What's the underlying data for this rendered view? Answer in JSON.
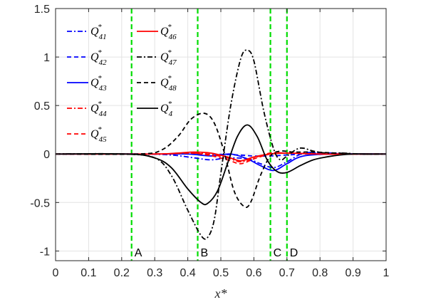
{
  "chart_data": {
    "type": "line",
    "xlabel": "x*",
    "ylabel": "",
    "xlim": [
      0,
      1
    ],
    "ylim": [
      -1.1,
      1.5
    ],
    "xticks": [
      "0",
      "0.1",
      "0.2",
      "0.3",
      "0.4",
      "0.5",
      "0.6",
      "0.7",
      "0.8",
      "0.9",
      "1"
    ],
    "yticks": [
      "-1",
      "-0.5",
      "0",
      "0.5",
      "1",
      "1.5"
    ],
    "grid": true,
    "legend_position": "top-left",
    "vertical_lines": [
      {
        "label": "A",
        "x": 0.23
      },
      {
        "label": "B",
        "x": 0.43
      },
      {
        "label": "C",
        "x": 0.65
      },
      {
        "label": "D",
        "x": 0.7
      }
    ],
    "series": [
      {
        "name": "Q41",
        "color": "#0000ff",
        "style": "dashdot",
        "x": [
          0,
          0.25,
          0.35,
          0.42,
          0.47,
          0.52,
          0.58,
          0.62,
          0.66,
          0.7,
          0.75,
          0.8,
          0.85,
          0.9,
          1.0
        ],
        "y": [
          0,
          0,
          -0.01,
          -0.04,
          -0.06,
          -0.04,
          -0.05,
          -0.1,
          -0.14,
          -0.08,
          0.01,
          0.01,
          0.01,
          0,
          0
        ]
      },
      {
        "name": "Q42",
        "color": "#0000ff",
        "style": "dashed",
        "x": [
          0,
          0.3,
          0.45,
          0.55,
          0.6,
          0.65,
          0.7,
          0.75,
          0.8,
          0.9,
          1.0
        ],
        "y": [
          0,
          0,
          0,
          -0.01,
          -0.02,
          -0.02,
          -0.01,
          0,
          0.01,
          0,
          0
        ]
      },
      {
        "name": "Q43",
        "color": "#0000ff",
        "style": "solid",
        "x": [
          0,
          0.3,
          0.4,
          0.47,
          0.53,
          0.58,
          0.62,
          0.66,
          0.7,
          0.75,
          0.85,
          1.0
        ],
        "y": [
          0,
          0,
          0,
          -0.02,
          0,
          -0.05,
          -0.12,
          -0.17,
          -0.1,
          -0.02,
          0,
          0
        ]
      },
      {
        "name": "Q44",
        "color": "#ff0000",
        "style": "dashdot",
        "x": [
          0,
          0.3,
          0.4,
          0.46,
          0.52,
          0.56,
          0.6,
          0.65,
          0.7,
          0.8,
          0.9,
          1.0
        ],
        "y": [
          0,
          0,
          0.01,
          0,
          -0.04,
          -0.08,
          -0.04,
          0.01,
          0.01,
          0,
          0,
          0
        ]
      },
      {
        "name": "Q45",
        "color": "#ff0000",
        "style": "dashed",
        "x": [
          0,
          0.3,
          0.4,
          0.46,
          0.52,
          0.56,
          0.6,
          0.65,
          0.7,
          0.8,
          0.9,
          1.0
        ],
        "y": [
          0,
          0,
          0.01,
          -0.01,
          -0.06,
          -0.1,
          -0.05,
          0,
          0.01,
          0,
          0,
          0
        ]
      },
      {
        "name": "Q46",
        "color": "#ff0000",
        "style": "solid",
        "x": [
          0,
          0.3,
          0.37,
          0.42,
          0.47,
          0.52,
          0.56,
          0.6,
          0.65,
          0.7,
          0.8,
          1.0
        ],
        "y": [
          0,
          0,
          0.01,
          0.02,
          0.01,
          -0.03,
          -0.07,
          -0.03,
          0,
          0.01,
          0,
          0
        ]
      },
      {
        "name": "Q47",
        "color": "#000000",
        "style": "dashdot",
        "x": [
          0,
          0.2,
          0.3,
          0.35,
          0.4,
          0.44,
          0.46,
          0.48,
          0.5,
          0.53,
          0.56,
          0.58,
          0.6,
          0.63,
          0.66,
          0.68,
          0.7,
          0.73,
          0.75,
          0.78,
          0.82,
          0.87,
          0.92,
          1.0
        ],
        "y": [
          0,
          0,
          -0.04,
          -0.22,
          -0.58,
          -0.84,
          -0.86,
          -0.68,
          -0.2,
          0.5,
          0.98,
          1.07,
          0.96,
          0.44,
          0.05,
          -0.06,
          -0.02,
          0.05,
          0.06,
          0.03,
          0.01,
          0.01,
          0,
          0
        ]
      },
      {
        "name": "Q48",
        "color": "#000000",
        "style": "dashed",
        "x": [
          0,
          0.25,
          0.32,
          0.37,
          0.41,
          0.45,
          0.48,
          0.51,
          0.54,
          0.57,
          0.59,
          0.62,
          0.65,
          0.68,
          0.72,
          0.78,
          0.85,
          0.92,
          1.0
        ],
        "y": [
          0,
          0,
          0.04,
          0.18,
          0.36,
          0.42,
          0.32,
          0.02,
          -0.38,
          -0.54,
          -0.5,
          -0.22,
          -0.02,
          0.03,
          0.02,
          0.02,
          0.01,
          0,
          0
        ]
      },
      {
        "name": "Q4",
        "color": "#000000",
        "style": "solid",
        "x": [
          0,
          0.22,
          0.3,
          0.35,
          0.4,
          0.44,
          0.46,
          0.49,
          0.52,
          0.55,
          0.58,
          0.61,
          0.64,
          0.67,
          0.7,
          0.74,
          0.78,
          0.82,
          0.86,
          0.9,
          0.95,
          1.0
        ],
        "y": [
          0,
          0,
          -0.04,
          -0.14,
          -0.36,
          -0.5,
          -0.51,
          -0.38,
          -0.1,
          0.18,
          0.3,
          0.18,
          -0.06,
          -0.18,
          -0.19,
          -0.12,
          -0.06,
          -0.03,
          -0.01,
          0,
          0,
          0
        ]
      }
    ]
  }
}
